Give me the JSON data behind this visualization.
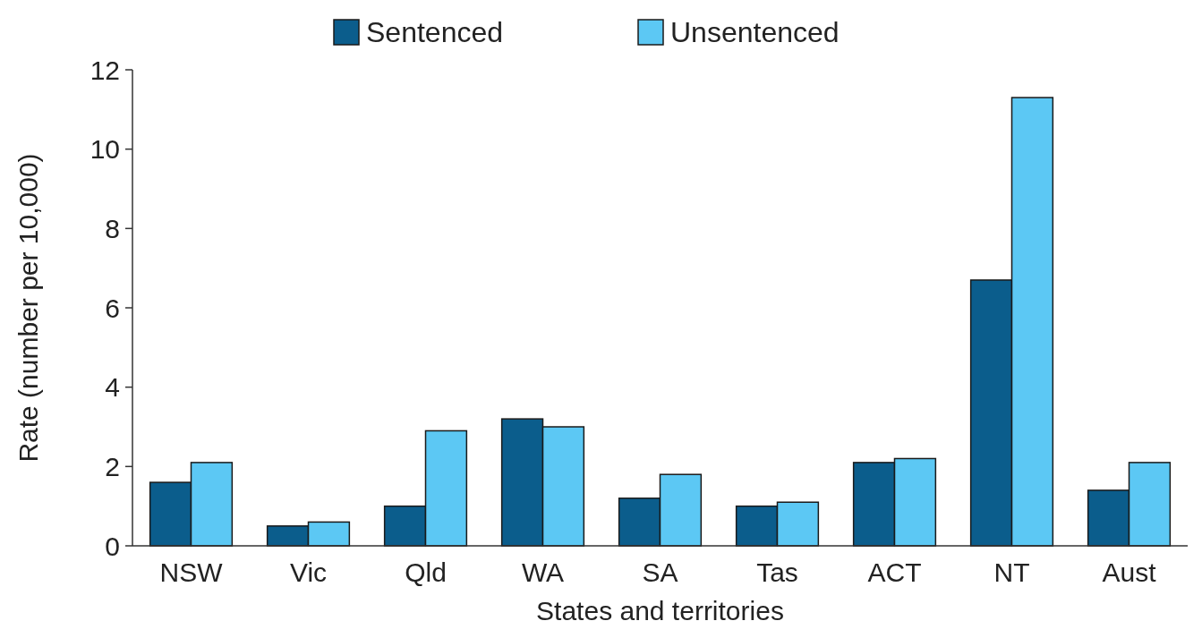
{
  "chart_data": {
    "type": "bar",
    "xlabel": "States and territories",
    "ylabel": "Rate (number per 10,000)",
    "categories": [
      "NSW",
      "Vic",
      "Qld",
      "WA",
      "SA",
      "Tas",
      "ACT",
      "NT",
      "Aust"
    ],
    "series": [
      {
        "name": "Sentenced",
        "color": "#0b5d8c",
        "values": [
          1.6,
          0.5,
          1.0,
          3.2,
          1.2,
          1.0,
          2.1,
          6.7,
          1.4
        ]
      },
      {
        "name": "Unsentenced",
        "color": "#5cc8f4",
        "values": [
          2.1,
          0.6,
          2.9,
          3.0,
          1.8,
          1.1,
          2.2,
          11.3,
          2.1
        ]
      }
    ],
    "ylim": [
      0,
      12
    ],
    "yticks": [
      0,
      2,
      4,
      6,
      8,
      10,
      12
    ],
    "legend": "top",
    "grid": false
  }
}
